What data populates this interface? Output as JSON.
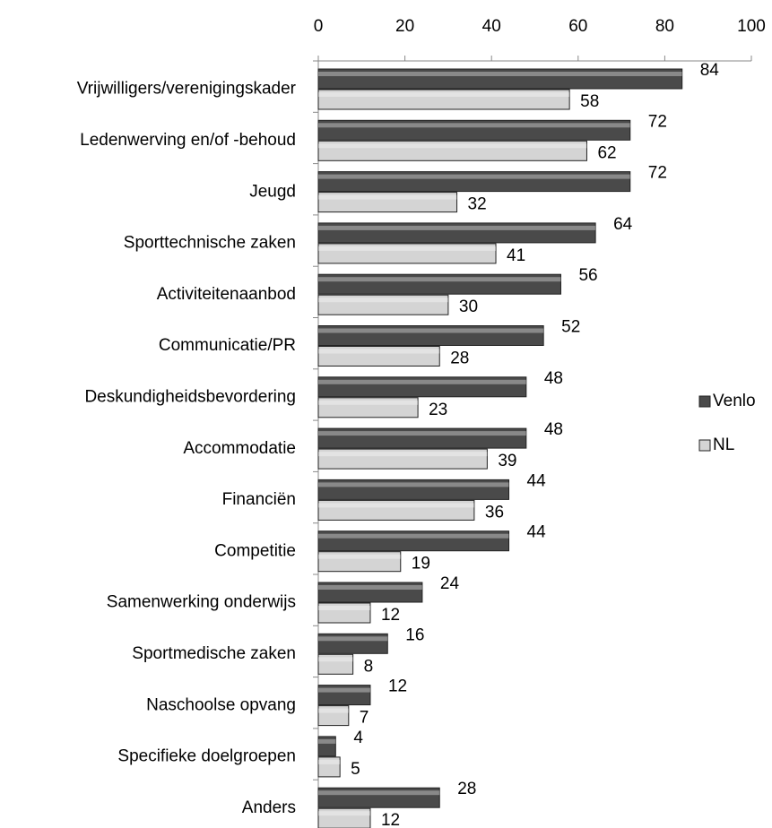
{
  "chart_data": {
    "type": "bar",
    "orientation": "horizontal",
    "categories": [
      "Vrijwilligers/verenigingskader",
      "Ledenwerving en/of -behoud",
      "Jeugd",
      "Sporttechnische zaken",
      "Activiteitenaanbod",
      "Communicatie/PR",
      "Deskundigheidsbevordering",
      "Accommodatie",
      "Financiën",
      "Competitie",
      "Samenwerking onderwijs",
      "Sportmedische zaken",
      "Naschoolse opvang",
      "Specifieke doelgroepen",
      "Anders"
    ],
    "series": [
      {
        "name": "Venlo",
        "color": "#4a4a4a",
        "values": [
          84,
          72,
          72,
          64,
          56,
          52,
          48,
          48,
          44,
          44,
          24,
          16,
          12,
          4,
          28
        ]
      },
      {
        "name": "NL",
        "color": "#d4d4d4",
        "values": [
          58,
          62,
          32,
          41,
          30,
          28,
          23,
          39,
          36,
          19,
          12,
          8,
          7,
          5,
          12
        ]
      }
    ],
    "xlim": [
      0,
      100
    ],
    "xticks": [
      0,
      20,
      40,
      60,
      80,
      100
    ],
    "legend": "right",
    "data_labels": true
  }
}
